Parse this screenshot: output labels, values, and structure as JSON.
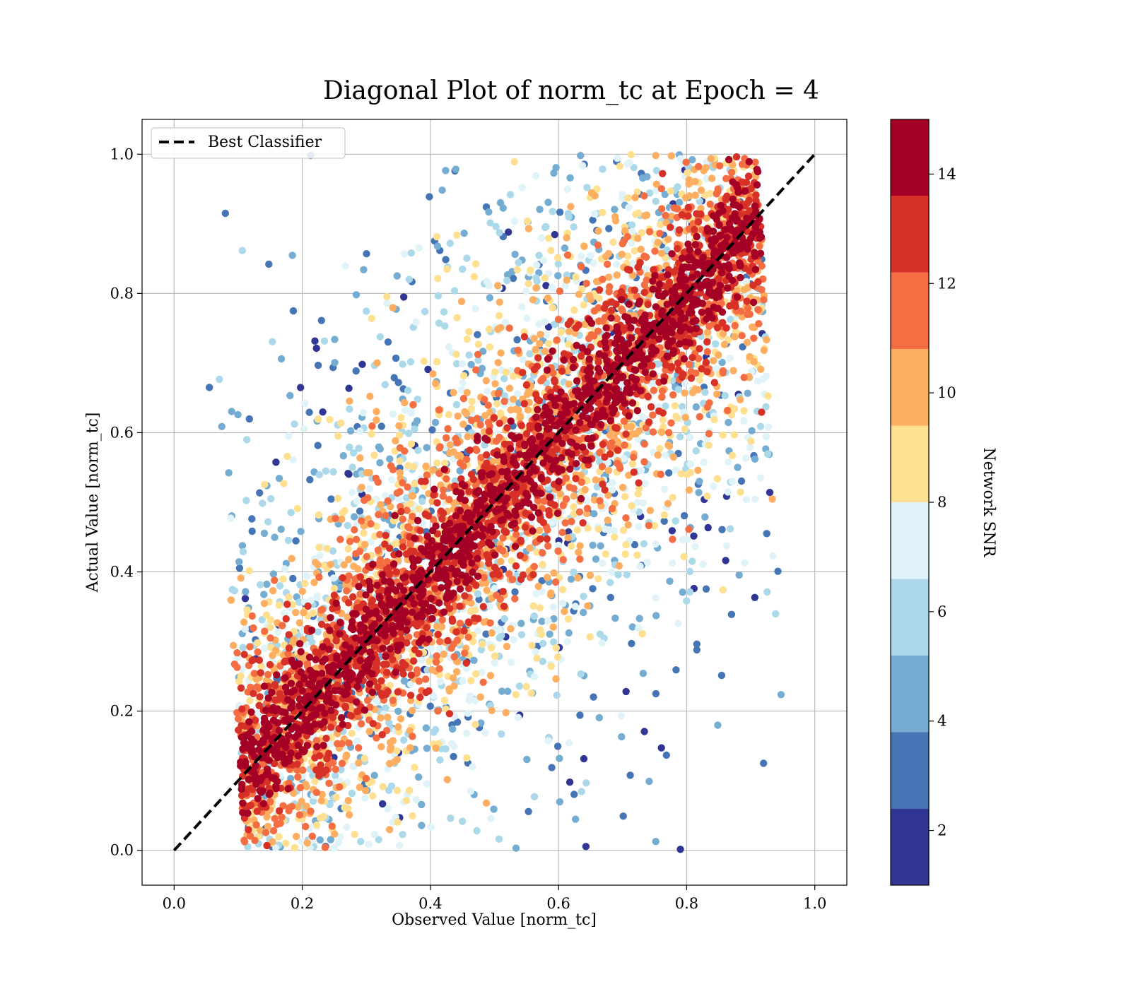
{
  "chart_data": {
    "type": "scatter",
    "title": "Diagonal Plot of norm_tc at Epoch = 4",
    "xlabel": "Observed Value [norm_tc]",
    "ylabel": "Actual Value [norm_tc]",
    "xlim": [
      -0.05,
      1.05
    ],
    "ylim": [
      -0.05,
      1.05
    ],
    "x_ticks": [
      "0.0",
      "0.2",
      "0.4",
      "0.6",
      "0.8",
      "1.0"
    ],
    "y_ticks": [
      "0.0",
      "0.2",
      "0.4",
      "0.6",
      "0.8",
      "1.0"
    ],
    "grid": true,
    "legend": {
      "placement": "upper-left",
      "entries": [
        {
          "label": "Best Classifier",
          "style": "black dashed line"
        }
      ]
    },
    "reference_line": {
      "label": "Best Classifier",
      "x": [
        0,
        1
      ],
      "y": [
        0,
        1
      ],
      "color": "#000000",
      "style": "dashed"
    },
    "point_cloud": {
      "description_of_distribution": "dense band along y = x with x roughly in [0.05, 0.97] and y in [0, 1]; high-SNR points concentrate near diagonal, low-SNR points scatter far from it",
      "approx_point_count": 7000,
      "x_range": [
        0.05,
        0.97
      ],
      "y_range": [
        0.0,
        1.0
      ],
      "outliers": [
        {
          "x": 0.08,
          "y": 0.915
        },
        {
          "x": 0.055,
          "y": 0.665
        },
        {
          "x": 0.92,
          "y": 0.125
        },
        {
          "x": 0.925,
          "y": 0.455
        }
      ]
    },
    "colorbar": {
      "label": "Network SNR",
      "range": [
        1,
        15
      ],
      "boundaries": [
        1,
        2.4,
        3.8,
        5.2,
        6.6,
        8,
        9.4,
        10.8,
        12.2,
        13.6,
        15
      ],
      "colors": [
        "#313695",
        "#4575b4",
        "#74add1",
        "#abd9e9",
        "#e0f3f8",
        "#fee090",
        "#fdae61",
        "#f46d43",
        "#d73027",
        "#a50026"
      ],
      "ticks": [
        "2",
        "4",
        "6",
        "8",
        "10",
        "12",
        "14"
      ],
      "tick_values": [
        2,
        4,
        6,
        8,
        10,
        12,
        14
      ]
    }
  }
}
